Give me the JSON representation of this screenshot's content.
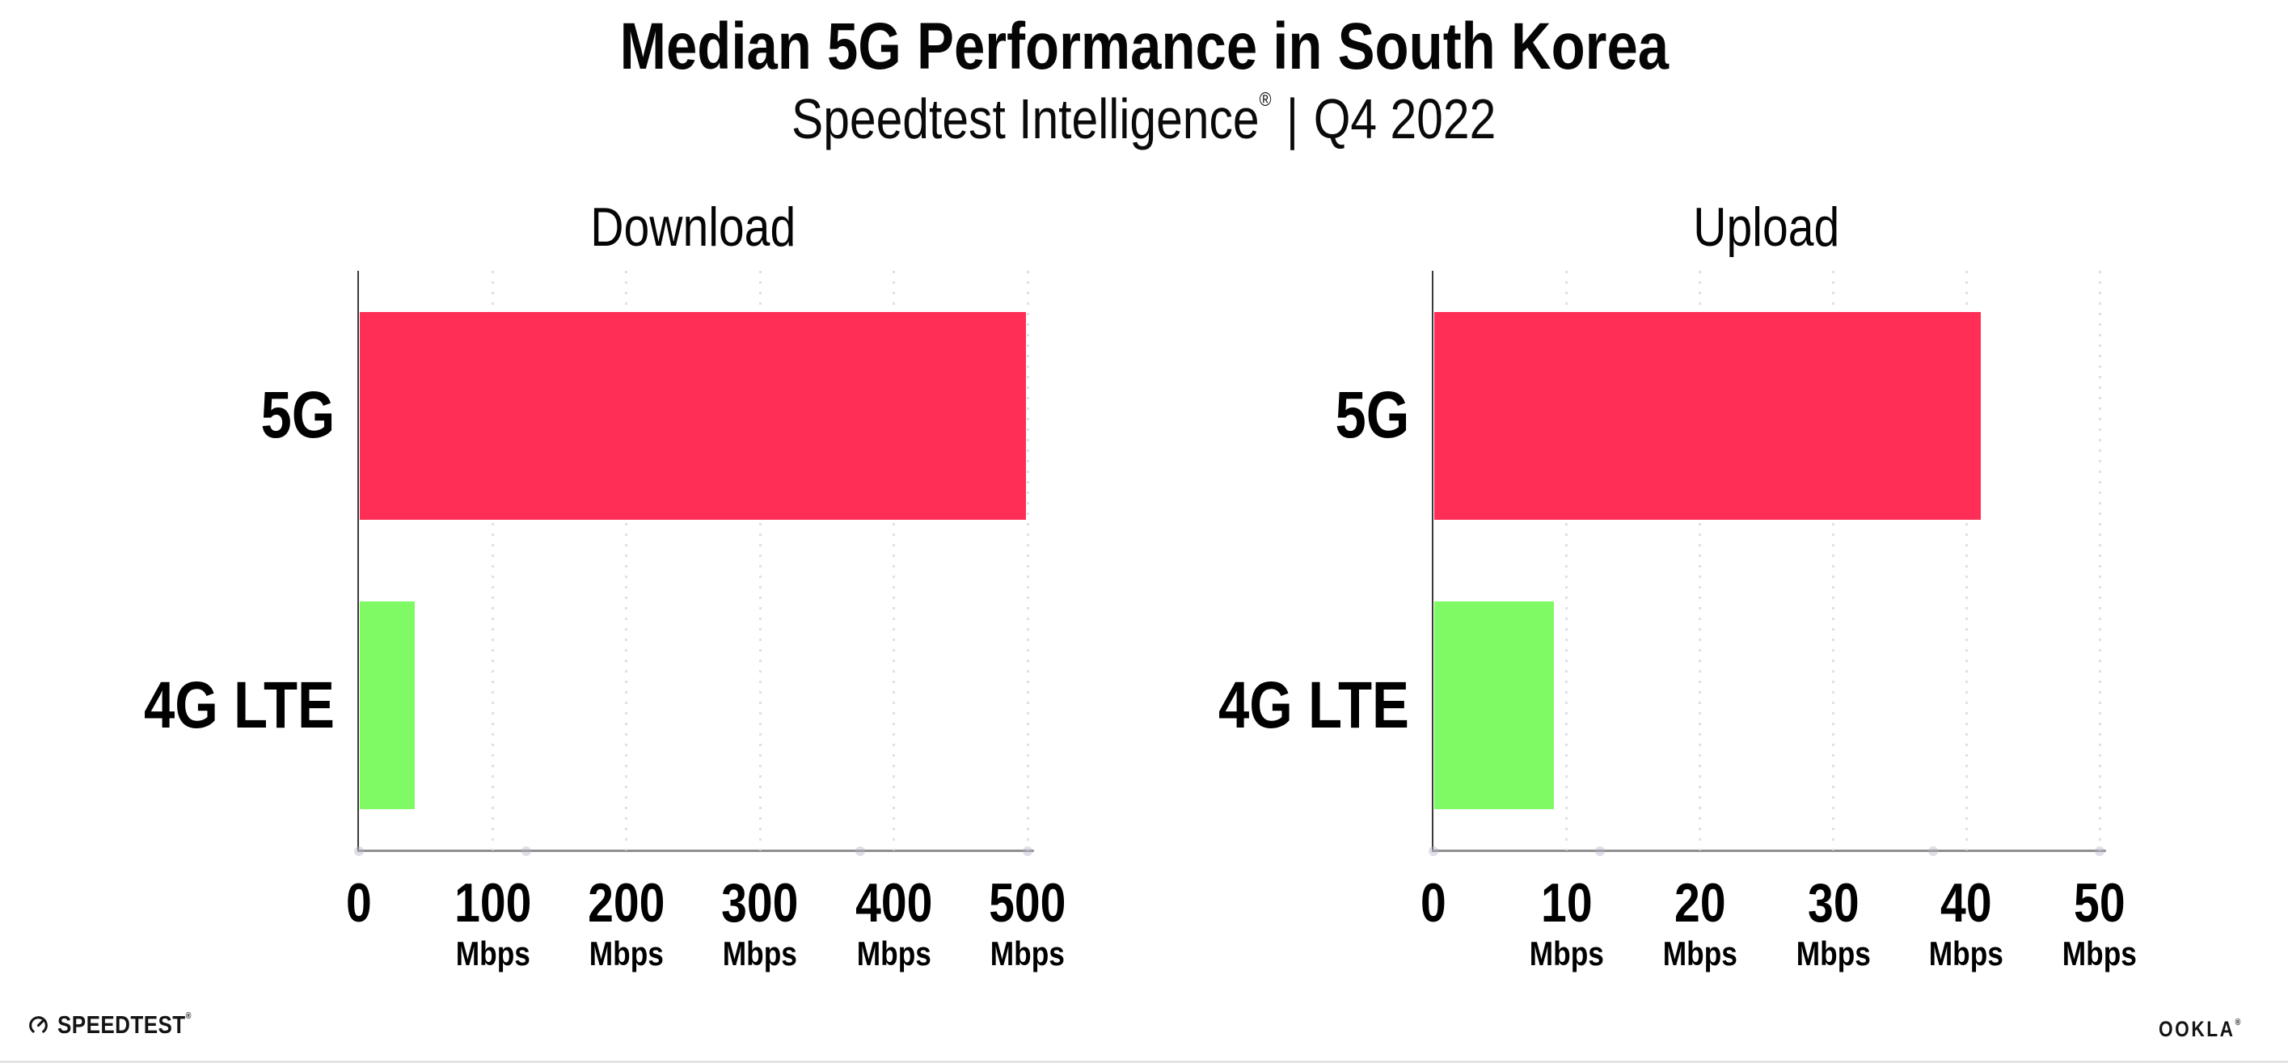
{
  "header": {
    "title": "Median 5G Performance in South Korea",
    "subtitle": {
      "brand": "Speedtest Intelligence",
      "reg": "®",
      "separator": "|",
      "period": "Q4 2022"
    }
  },
  "chart_data": [
    {
      "type": "bar",
      "orientation": "horizontal",
      "title": "Download",
      "categories": [
        "5G",
        "4G LTE"
      ],
      "values": [
        498,
        41
      ],
      "unit": "Mbps",
      "xlim": [
        0,
        500
      ],
      "xticks": [
        0,
        100,
        200,
        300,
        400,
        500
      ],
      "bar_colors": [
        "#FF2E56",
        "#80FA64"
      ],
      "grid": "dotted-vertical",
      "legend": "none"
    },
    {
      "type": "bar",
      "orientation": "horizontal",
      "title": "Upload",
      "categories": [
        "5G",
        "4G LTE"
      ],
      "values": [
        41,
        9
      ],
      "unit": "Mbps",
      "xlim": [
        0,
        50
      ],
      "xticks": [
        0,
        10,
        20,
        30,
        40,
        50
      ],
      "bar_colors": [
        "#FF2E56",
        "#80FA64"
      ],
      "grid": "dotted-vertical",
      "legend": "none"
    }
  ],
  "footer": {
    "speedtest": "SPEEDTEST",
    "speedtest_reg": "®",
    "ookla": "OOKLA",
    "ookla_reg": "®"
  },
  "colors": {
    "bar_5g": "#FF2E56",
    "bar_4g_lte": "#80FA64",
    "grid": "#DFDFE9",
    "x_axis": "#8F8F8F",
    "y_axis": "#3A3A3A",
    "text": "#000000",
    "background": "#FFFFFF"
  }
}
